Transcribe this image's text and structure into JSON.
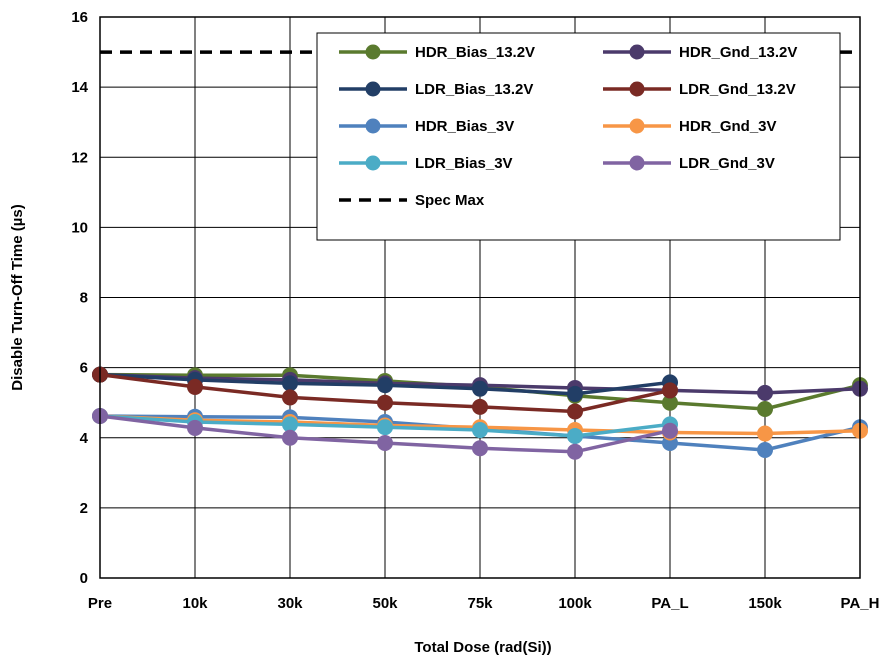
{
  "chart_data": {
    "type": "line",
    "title": "",
    "xlabel": "Total Dose (rad(Si))",
    "ylabel": "Disable Turn-Off Time (µs)",
    "categories": [
      "Pre",
      "10k",
      "30k",
      "50k",
      "75k",
      "100k",
      "PA_L",
      "150k",
      "PA_H"
    ],
    "ylim": [
      0,
      16
    ],
    "yticks": [
      0,
      2,
      4,
      6,
      8,
      10,
      12,
      14,
      16
    ],
    "grid": true,
    "legend_position": "top-right",
    "series": [
      {
        "name": "HDR_Bias_13.2V",
        "color": "#5a7a2e",
        "values": [
          5.8,
          5.78,
          5.78,
          5.62,
          5.45,
          5.2,
          5.0,
          4.82,
          5.5
        ]
      },
      {
        "name": "HDR_Gnd_13.2V",
        "color": "#4b3a6b",
        "values": [
          5.8,
          5.7,
          5.65,
          5.55,
          5.5,
          5.42,
          5.35,
          5.28,
          5.4
        ]
      },
      {
        "name": "LDR_Bias_13.2V",
        "color": "#223e66",
        "values": [
          5.8,
          5.65,
          5.55,
          5.5,
          5.4,
          5.25,
          5.58,
          null,
          null
        ]
      },
      {
        "name": "LDR_Gnd_13.2V",
        "color": "#7a2a24",
        "values": [
          5.8,
          5.45,
          5.15,
          5.0,
          4.88,
          4.75,
          5.35,
          null,
          null
        ]
      },
      {
        "name": "HDR_Bias_3V",
        "color": "#4f81bd",
        "values": [
          4.62,
          4.6,
          4.58,
          4.45,
          4.25,
          4.05,
          3.85,
          3.65,
          4.3
        ]
      },
      {
        "name": "HDR_Gnd_3V",
        "color": "#f79646",
        "values": [
          4.62,
          4.5,
          4.45,
          4.35,
          4.3,
          4.22,
          4.15,
          4.12,
          4.2
        ]
      },
      {
        "name": "LDR_Bias_3V",
        "color": "#4bacc6",
        "values": [
          4.62,
          4.45,
          4.38,
          4.3,
          4.22,
          4.05,
          4.38,
          null,
          null
        ]
      },
      {
        "name": "LDR_Gnd_3V",
        "color": "#8064a2",
        "values": [
          4.62,
          4.28,
          4.0,
          3.85,
          3.7,
          3.6,
          4.2,
          null,
          null
        ]
      },
      {
        "name": "Spec Max",
        "color": "#000000",
        "dashed": true,
        "values": [
          15,
          15,
          15,
          15,
          15,
          15,
          15,
          15,
          15
        ]
      }
    ]
  }
}
